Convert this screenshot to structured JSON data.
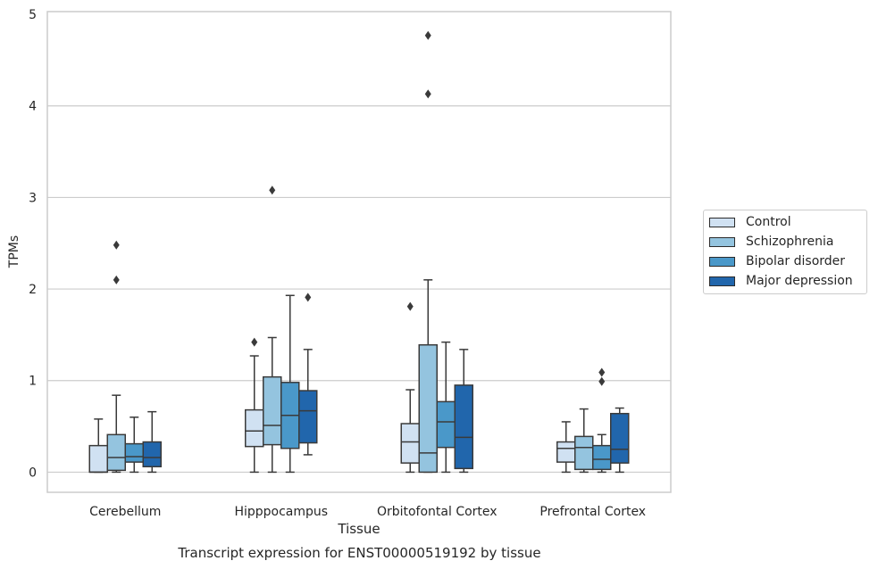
{
  "chart_data": {
    "type": "box",
    "title": "",
    "caption": "Transcript expression for ENST00000519192 by tissue",
    "xlabel": "Tissue",
    "ylabel": "TPMs",
    "ylim": [
      -0.22,
      5.03
    ],
    "yticks": [
      0,
      1,
      2,
      3,
      4,
      5
    ],
    "grid": "horizontal",
    "legend_position": "right",
    "categories": [
      "Cerebellum",
      "Hipppocampus",
      "Orbitofontal Cortex",
      "Prefrontal Cortex"
    ],
    "series": [
      {
        "name": "Control",
        "color": "#d0e1f2",
        "boxes": [
          {
            "q1": 0.0,
            "median": 0.0,
            "q3": 0.29,
            "whislo": 0.0,
            "whishi": 0.58,
            "fliers": []
          },
          {
            "q1": 0.28,
            "median": 0.45,
            "q3": 0.68,
            "whislo": 0.0,
            "whishi": 1.27,
            "fliers": [
              1.42
            ]
          },
          {
            "q1": 0.1,
            "median": 0.33,
            "q3": 0.53,
            "whislo": 0.0,
            "whishi": 0.9,
            "fliers": [
              1.81
            ]
          },
          {
            "q1": 0.11,
            "median": 0.26,
            "q3": 0.33,
            "whislo": 0.0,
            "whishi": 0.55,
            "fliers": []
          }
        ]
      },
      {
        "name": "Schizophrenia",
        "color": "#94c4df",
        "boxes": [
          {
            "q1": 0.02,
            "median": 0.16,
            "q3": 0.41,
            "whislo": 0.0,
            "whishi": 0.84,
            "fliers": [
              2.1,
              2.48
            ]
          },
          {
            "q1": 0.3,
            "median": 0.51,
            "q3": 1.04,
            "whislo": 0.0,
            "whishi": 1.47,
            "fliers": [
              3.08
            ]
          },
          {
            "q1": 0.0,
            "median": 0.21,
            "q3": 1.39,
            "whislo": 0.0,
            "whishi": 2.1,
            "fliers": [
              4.13,
              4.77
            ]
          },
          {
            "q1": 0.03,
            "median": 0.27,
            "q3": 0.39,
            "whislo": 0.0,
            "whishi": 0.69,
            "fliers": []
          }
        ]
      },
      {
        "name": "Bipolar disorder",
        "color": "#4a98c9",
        "boxes": [
          {
            "q1": 0.11,
            "median": 0.17,
            "q3": 0.31,
            "whislo": 0.0,
            "whishi": 0.6,
            "fliers": []
          },
          {
            "q1": 0.26,
            "median": 0.62,
            "q3": 0.98,
            "whislo": 0.0,
            "whishi": 1.93,
            "fliers": []
          },
          {
            "q1": 0.27,
            "median": 0.55,
            "q3": 0.77,
            "whislo": 0.0,
            "whishi": 1.42,
            "fliers": []
          },
          {
            "q1": 0.03,
            "median": 0.14,
            "q3": 0.29,
            "whislo": 0.0,
            "whishi": 0.41,
            "fliers": [
              0.99,
              1.09
            ]
          }
        ]
      },
      {
        "name": "Major depression",
        "color": "#2166ac",
        "boxes": [
          {
            "q1": 0.06,
            "median": 0.16,
            "q3": 0.33,
            "whislo": 0.0,
            "whishi": 0.66,
            "fliers": []
          },
          {
            "q1": 0.32,
            "median": 0.67,
            "q3": 0.89,
            "whislo": 0.19,
            "whishi": 1.34,
            "fliers": [
              1.91
            ]
          },
          {
            "q1": 0.04,
            "median": 0.38,
            "q3": 0.95,
            "whislo": 0.0,
            "whishi": 1.34,
            "fliers": []
          },
          {
            "q1": 0.1,
            "median": 0.25,
            "q3": 0.64,
            "whislo": 0.0,
            "whishi": 0.7,
            "fliers": []
          }
        ]
      }
    ]
  }
}
